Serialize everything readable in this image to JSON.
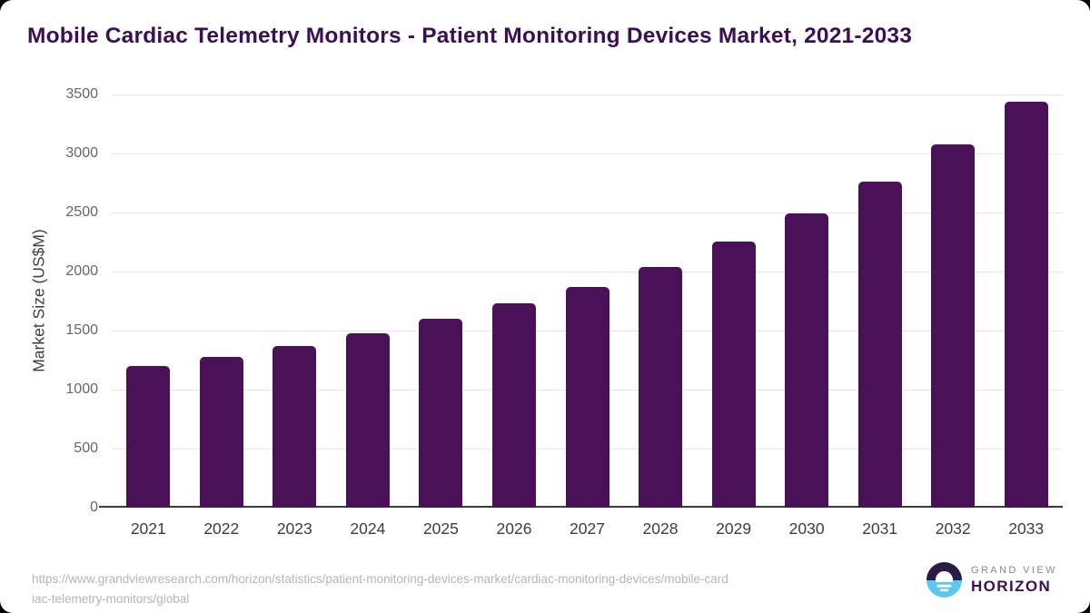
{
  "chart_data": {
    "type": "bar",
    "title": "Mobile Cardiac Telemetry Monitors - Patient Monitoring Devices Market, 2021-2033",
    "categories": [
      "2021",
      "2022",
      "2023",
      "2024",
      "2025",
      "2026",
      "2027",
      "2028",
      "2029",
      "2030",
      "2031",
      "2032",
      "2033"
    ],
    "values": [
      1200,
      1280,
      1370,
      1480,
      1600,
      1730,
      1870,
      2040,
      2250,
      2490,
      2760,
      3080,
      3440
    ],
    "xlabel": "",
    "ylabel": "Market Size (US$M)",
    "ylim": [
      0,
      3500
    ],
    "ytick_step": 500,
    "yticks": [
      "0",
      "500",
      "1000",
      "1500",
      "2000",
      "2500",
      "3000",
      "3500"
    ],
    "grid": true,
    "legend": "none",
    "bar_color": "#4a1158"
  },
  "footer": {
    "source_url": "https://www.grandviewresearch.com/horizon/statistics/patient-monitoring-devices-market/cardiac-monitoring-devices/mobile-cardiac-telemetry-monitors/global",
    "source_url_lines": [
      "https://www.grandviewresearch.com/horizon/statistics/patient-monitoring-devices-market/cardiac-monitoring-devices/mobile-card",
      "iac-telemetry-monitors/global"
    ]
  },
  "logo": {
    "brand_top": "GRAND VIEW",
    "brand_bottom": "HORIZON"
  },
  "colors": {
    "bar": "#4a1158",
    "title": "#3a1053",
    "gridline": "#e7e7e7",
    "axis_line": "#3c3c3c",
    "y_tick": "#666666",
    "x_tick": "#3d3d3d",
    "source_text": "#b5b5b5",
    "logo_navy": "#2b1b47",
    "logo_blue": "#5ac8f0"
  }
}
